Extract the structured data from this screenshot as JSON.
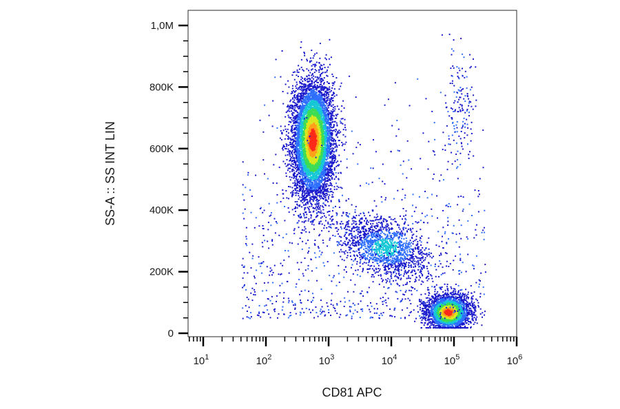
{
  "chart_data": {
    "type": "scatter",
    "subtype": "flow cytometry dot plot (density colored)",
    "xlabel": "CD81 APC",
    "ylabel": "SS-A :: SS INT LIN",
    "x_scale": "log",
    "xlim": [
      1,
      1000000
    ],
    "ylim": [
      0,
      1000000
    ],
    "x_ticks": [
      {
        "base": "10",
        "exp": "1",
        "value": 10
      },
      {
        "base": "10",
        "exp": "2",
        "value": 100
      },
      {
        "base": "10",
        "exp": "3",
        "value": 1000
      },
      {
        "base": "10",
        "exp": "4",
        "value": 10000
      },
      {
        "base": "10",
        "exp": "5",
        "value": 100000
      },
      {
        "base": "10",
        "exp": "6",
        "value": 1000000
      }
    ],
    "y_ticks": [
      {
        "label": "0",
        "value": 0
      },
      {
        "label": "200K",
        "value": 200000
      },
      {
        "label": "400K",
        "value": 400000
      },
      {
        "label": "600K",
        "value": 600000
      },
      {
        "label": "800K",
        "value": 800000
      },
      {
        "label": "1,0M",
        "value": 1000000
      }
    ],
    "density_colors": [
      "#1a1acc",
      "#2f6fff",
      "#17c7d6",
      "#3ddc55",
      "#d8e81e",
      "#ffa21a",
      "#ff2a1a"
    ],
    "populations": [
      {
        "description": "CD81 low, high side scatter cluster",
        "x_center": 550,
        "y_center": 630000,
        "n_points": 7000
      },
      {
        "description": "CD81 intermediate, mid side scatter band",
        "x_center": 8000,
        "y_center": 280000,
        "n_points": 1500
      },
      {
        "description": "CD81 high, low side scatter cluster",
        "x_center": 80000,
        "y_center": 70000,
        "n_points": 3000
      },
      {
        "description": "CD81 high, high side scatter sparse group",
        "x_center": 120000,
        "y_center": 750000,
        "n_points": 160
      },
      {
        "description": "scattered background events",
        "x_center": 3000,
        "y_center": 250000,
        "n_points": 900
      }
    ]
  }
}
